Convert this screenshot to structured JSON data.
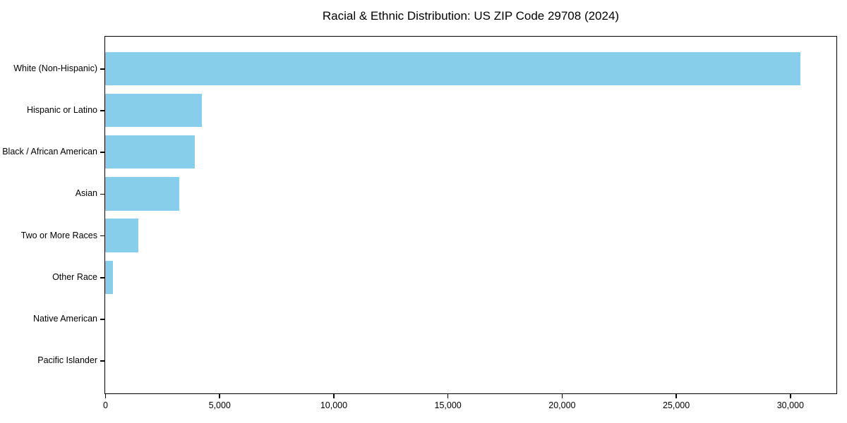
{
  "figure": {
    "background": "#ffffff",
    "spine_color": "#000000",
    "text_color": "#000000"
  },
  "chart_data": {
    "type": "bar",
    "orientation": "horizontal",
    "title": "Racial & Ethnic Distribution: US ZIP Code 29708 (2024)",
    "xlabel": "",
    "ylabel": "",
    "categories": [
      "White (Non-Hispanic)",
      "Hispanic or Latino",
      "Black / African American",
      "Asian",
      "Two or More Races",
      "Other Race",
      "Native American",
      "Pacific Islander"
    ],
    "values": [
      30460,
      4250,
      3930,
      3240,
      1450,
      330,
      0,
      0
    ],
    "bar_color": "#87CEEB",
    "xlim": [
      0,
      32000
    ],
    "x_ticks": [
      0,
      5000,
      10000,
      15000,
      20000,
      25000,
      30000
    ],
    "x_tick_labels": [
      "0",
      "5,000",
      "10,000",
      "15,000",
      "20,000",
      "25,000",
      "30,000"
    ],
    "grid": false,
    "legend": null
  }
}
